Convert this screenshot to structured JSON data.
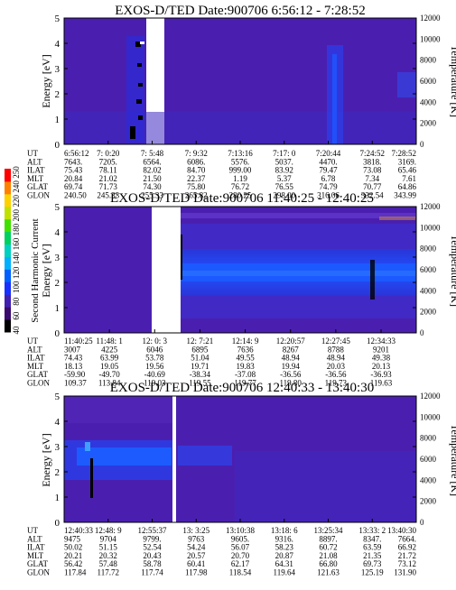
{
  "colors": {
    "background": "#4a1fb0",
    "band_blue": "#1f4dff",
    "band_mid": "#2a3ae0",
    "gap": "#ffffff"
  },
  "colorbar": {
    "label": "Second Harmonic Current",
    "ticks": [
      "40",
      "60",
      "80",
      "100",
      "120",
      "140",
      "160",
      "180",
      "200",
      "220",
      "240",
      "250"
    ],
    "colors": [
      "#000000",
      "#3a0a6e",
      "#4020b0",
      "#1830ff",
      "#0060ff",
      "#00b0ff",
      "#00d0c0",
      "#00d060",
      "#40e000",
      "#c0e000",
      "#ffd000",
      "#ff8000",
      "#ff0000"
    ]
  },
  "panels": [
    {
      "title": "EXOS-D/TED   Date:900706  6:56:12 - 7:28:52",
      "ylabel": "Energy [eV]",
      "ylabel_right": "Temperature [K]",
      "y_ticks": [
        "0",
        "1",
        "2",
        "3",
        "4",
        "5"
      ],
      "t_ticks": [
        "0",
        "2000",
        "4000",
        "6000",
        "8000",
        "10000",
        "12000"
      ],
      "rows": [
        {
          "label": "UT",
          "values": [
            "6:56:12",
            "7: 0:20",
            "7: 5:48",
            "7: 9:32",
            "7:13:16",
            "7:17: 0",
            "7:20:44",
            "7:24:52",
            "7:28:52"
          ]
        },
        {
          "label": "ALT",
          "values": [
            "7643.",
            "7205.",
            "6564.",
            "6086.",
            "5576.",
            "5037.",
            "4470.",
            "3818.",
            "3169."
          ]
        },
        {
          "label": "ILAT",
          "values": [
            "75.43",
            "78.11",
            "82.02",
            "84.70",
            "999.00",
            "83.92",
            "79.47",
            "73.08",
            "65.46"
          ]
        },
        {
          "label": "MLT",
          "values": [
            "20.84",
            "21.02",
            "21.50",
            "22.37",
            "1.19",
            "5.37",
            "6.78",
            "7.34",
            "7.61"
          ]
        },
        {
          "label": "GLAT",
          "values": [
            "69.74",
            "71.73",
            "74.30",
            "75.80",
            "76.72",
            "76.55",
            "74.79",
            "70.77",
            "64.86"
          ]
        },
        {
          "label": "GLON",
          "values": [
            "240.50",
            "245.33",
            "255.33",
            "265.82",
            "280.25",
            "298.00",
            "316.06",
            "332.54",
            "343.99"
          ]
        }
      ]
    },
    {
      "title": "EXOS-D/TED   Date:900706  11:40:25 - 12:40:25",
      "ylabel": "Energy [eV]",
      "ylabel_right": "Temperature [K]",
      "y_ticks": [
        "0",
        "1",
        "2",
        "3",
        "4",
        "5"
      ],
      "t_ticks": [
        "0",
        "2000",
        "4000",
        "6000",
        "8000",
        "10000",
        "12000"
      ],
      "rows": [
        {
          "label": "UT",
          "values": [
            "11:40:25",
            "11:48: 1",
            "12: 0: 3",
            "12: 7:21",
            "12:14: 9",
            "12:20:57",
            "12:27:45",
            "12:34:33"
          ]
        },
        {
          "label": "ALT",
          "values": [
            "3007",
            "4225",
            "6046",
            "6895",
            "7636",
            "8267",
            "8788",
            "9201"
          ]
        },
        {
          "label": "ILAT",
          "values": [
            "74.43",
            "63.99",
            "53.78",
            "51.04",
            "49.55",
            "48.94",
            "48.94",
            "49.38"
          ]
        },
        {
          "label": "MLT",
          "values": [
            "18.13",
            "19.05",
            "19.56",
            "19.71",
            "19.83",
            "19.94",
            "20.03",
            "20.13"
          ]
        },
        {
          "label": "GLAT",
          "values": [
            "-59.90",
            "-49.70",
            "-40.69",
            "-38.34",
            "-37.08",
            "-36.56",
            "-36.56",
            "-36.93"
          ]
        },
        {
          "label": "GLON",
          "values": [
            "109.37",
            "113.84",
            "119.03",
            "119.55",
            "119.77",
            "119.80",
            "119.73",
            "119.63"
          ]
        }
      ]
    },
    {
      "title": "EXOS-D/TED   Date:900706  12:40:33 - 13:40:30",
      "ylabel": "Energy [eV]",
      "ylabel_right": "Temperature [K]",
      "y_ticks": [
        "0",
        "1",
        "2",
        "3",
        "4",
        "5"
      ],
      "t_ticks": [
        "0",
        "2000",
        "4000",
        "6000",
        "8000",
        "10000",
        "12000"
      ],
      "rows": [
        {
          "label": "UT",
          "values": [
            "12:40:33",
            "12:48: 9",
            "12:55:37",
            "13: 3:25",
            "13:10:38",
            "13:18: 6",
            "13:25:34",
            "13:33: 2",
            "13:40:30"
          ]
        },
        {
          "label": "ALT",
          "values": [
            "9475",
            "9704",
            "9799.",
            "9763",
            "9605.",
            "9316.",
            "8897.",
            "8347.",
            "7664."
          ]
        },
        {
          "label": "ILAT",
          "values": [
            "50.02",
            "51.15",
            "52.54",
            "54.24",
            "56.07",
            "58.23",
            "60.72",
            "63.59",
            "66.92"
          ]
        },
        {
          "label": "MLT",
          "values": [
            "20.21",
            "20.32",
            "20.43",
            "20.57",
            "20.70",
            "20.87",
            "21.08",
            "21.35",
            "21.72"
          ]
        },
        {
          "label": "GLAT",
          "values": [
            "56.42",
            "57.48",
            "58.78",
            "60.41",
            "62.17",
            "64.31",
            "66.80",
            "69.73",
            "73.12"
          ]
        },
        {
          "label": "GLON",
          "values": [
            "117.84",
            "117.72",
            "117.74",
            "117.98",
            "118.54",
            "119.64",
            "121.63",
            "125.19",
            "131.90"
          ]
        }
      ]
    }
  ],
  "chart_data": [
    {
      "type": "heatmap",
      "title": "EXOS-D/TED   Date:900706  6:56:12 - 7:28:52",
      "ylabel": "Energy [eV]",
      "ylabel_right": "Temperature [K]",
      "ylim": [
        0,
        5
      ],
      "ylim_right": [
        0,
        12000
      ],
      "x": [
        "6:56:12",
        "7: 0:20",
        "7: 5:48",
        "7: 9:32",
        "7:13:16",
        "7:17: 0",
        "7:20:44",
        "7:24:52",
        "7:28:52"
      ],
      "data_gaps": [
        [
          0.28,
          0.34
        ]
      ],
      "colorbar_ticks": [
        "40",
        "60",
        "80",
        "100",
        "120",
        "140",
        "160",
        "180",
        "200",
        "220",
        "240",
        "250"
      ]
    },
    {
      "type": "heatmap",
      "title": "EXOS-D/TED   Date:900706  11:40:25 - 12:40:25",
      "ylabel": "Energy [eV]",
      "ylabel_right": "Temperature [K]",
      "ylim": [
        0,
        5
      ],
      "ylim_right": [
        0,
        12000
      ],
      "x": [
        "11:40:25",
        "11:48: 1",
        "12: 0: 3",
        "12: 7:21",
        "12:14: 9",
        "12:20:57",
        "12:27:45",
        "12:34:33"
      ],
      "data_gaps": [
        [
          0.22,
          0.3
        ]
      ],
      "colorbar_ticks": [
        "40",
        "60",
        "80",
        "100",
        "120",
        "140",
        "160",
        "180",
        "200",
        "220",
        "240",
        "250"
      ]
    },
    {
      "type": "heatmap",
      "title": "EXOS-D/TED   Date:900706  12:40:33 - 13:40:30",
      "ylabel": "Energy [eV]",
      "ylabel_right": "Temperature [K]",
      "ylim": [
        0,
        5
      ],
      "ylim_right": [
        0,
        12000
      ],
      "x": [
        "12:40:33",
        "12:48: 9",
        "12:55:37",
        "13: 3:25",
        "13:10:38",
        "13:18: 6",
        "13:25:34",
        "13:33: 2",
        "13:40:30"
      ],
      "data_gaps": [
        [
          0.315,
          0.325
        ]
      ],
      "colorbar_ticks": [
        "40",
        "60",
        "80",
        "100",
        "120",
        "140",
        "160",
        "180",
        "200",
        "220",
        "240",
        "250"
      ]
    }
  ]
}
